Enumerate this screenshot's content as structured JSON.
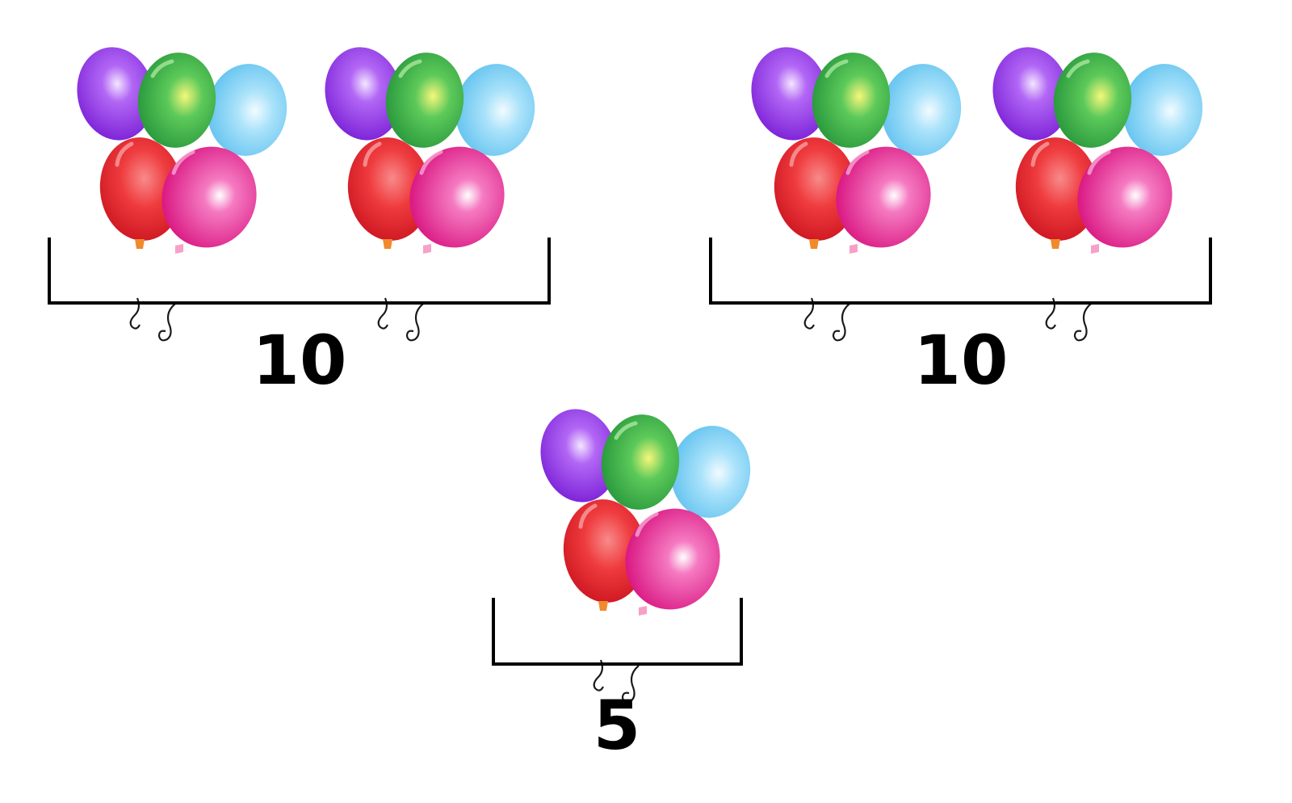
{
  "diagram": {
    "groups": [
      {
        "id": "group-left",
        "bunch_count": 2,
        "balloons_per_bunch": 5,
        "total_label": "10"
      },
      {
        "id": "group-right",
        "bunch_count": 2,
        "balloons_per_bunch": 5,
        "total_label": "10"
      },
      {
        "id": "group-bottom",
        "bunch_count": 1,
        "balloons_per_bunch": 5,
        "total_label": "5"
      }
    ]
  },
  "colors": {
    "purple": "#9b3cf0",
    "green": "#3cb84a",
    "blue": "#8fd6f7",
    "red": "#ee2a2f",
    "pink": "#ec1a8c",
    "bracket": "#000000",
    "label": "#000000"
  },
  "balloon_order": [
    "purple",
    "green",
    "blue",
    "red",
    "pink"
  ]
}
